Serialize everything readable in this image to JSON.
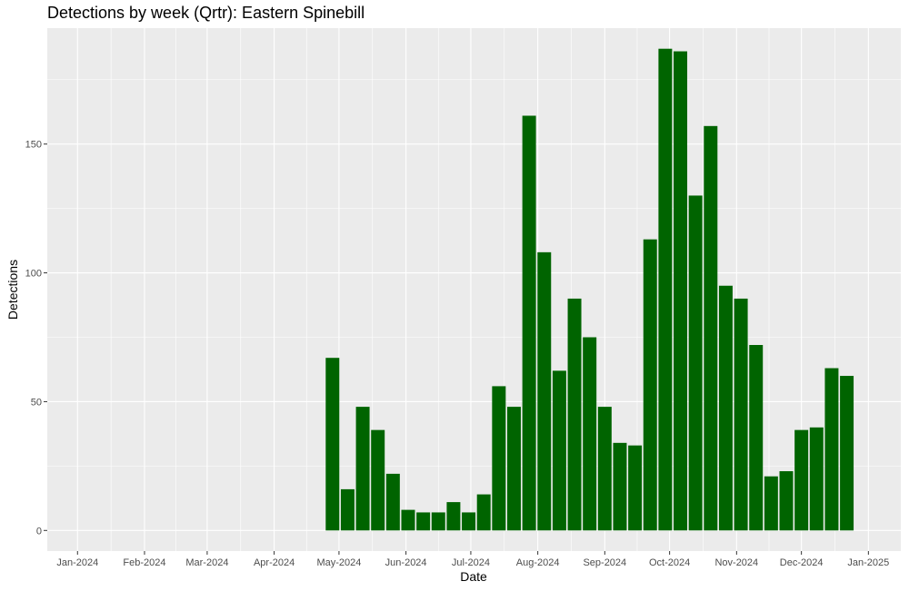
{
  "chart_data": {
    "type": "bar",
    "title": "Detections by week (Qrtr): Eastern Spinebill",
    "xlabel": "Date",
    "ylabel": "Detections",
    "x_axis_type": "date",
    "xlim": [
      "2023-12-18",
      "2025-01-16"
    ],
    "ylim": [
      -8,
      195
    ],
    "x_ticks": [
      {
        "date": "2024-01-01",
        "label": "Jan-2024"
      },
      {
        "date": "2024-02-01",
        "label": "Feb-2024"
      },
      {
        "date": "2024-03-01",
        "label": "Mar-2024"
      },
      {
        "date": "2024-04-01",
        "label": "Apr-2024"
      },
      {
        "date": "2024-05-01",
        "label": "May-2024"
      },
      {
        "date": "2024-06-01",
        "label": "Jun-2024"
      },
      {
        "date": "2024-07-01",
        "label": "Jul-2024"
      },
      {
        "date": "2024-08-01",
        "label": "Aug-2024"
      },
      {
        "date": "2024-09-01",
        "label": "Sep-2024"
      },
      {
        "date": "2024-10-01",
        "label": "Oct-2024"
      },
      {
        "date": "2024-11-01",
        "label": "Nov-2024"
      },
      {
        "date": "2024-12-01",
        "label": "Dec-2024"
      },
      {
        "date": "2025-01-01",
        "label": "Jan-2025"
      }
    ],
    "y_ticks": [
      0,
      50,
      100,
      150
    ],
    "grid": true,
    "bar_color": "#006400",
    "panel_color": "#ebebeb",
    "grid_color": "#ffffff",
    "x": [
      "2024-04-28",
      "2024-05-05",
      "2024-05-12",
      "2024-05-19",
      "2024-05-26",
      "2024-06-02",
      "2024-06-09",
      "2024-06-16",
      "2024-06-23",
      "2024-06-30",
      "2024-07-07",
      "2024-07-14",
      "2024-07-21",
      "2024-07-28",
      "2024-08-04",
      "2024-08-11",
      "2024-08-18",
      "2024-08-25",
      "2024-09-01",
      "2024-09-08",
      "2024-09-15",
      "2024-09-22",
      "2024-09-29",
      "2024-10-06",
      "2024-10-13",
      "2024-10-20",
      "2024-10-27",
      "2024-11-03",
      "2024-11-10",
      "2024-11-17",
      "2024-11-24",
      "2024-12-01",
      "2024-12-08",
      "2024-12-15",
      "2024-12-22"
    ],
    "values": [
      67,
      16,
      48,
      39,
      22,
      8,
      7,
      7,
      11,
      7,
      14,
      56,
      48,
      161,
      108,
      62,
      90,
      75,
      48,
      34,
      33,
      113,
      187,
      186,
      130,
      157,
      95,
      90,
      72,
      21,
      23,
      39,
      40,
      63,
      60
    ]
  }
}
